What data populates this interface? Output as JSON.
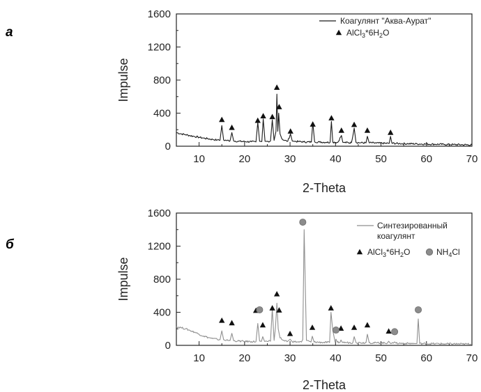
{
  "figure": {
    "panels": [
      {
        "panel_label": "а",
        "legend": {
          "line_label": "Коагулянт \"Аква-Аурат\"",
          "markers": [
            {
              "shape": "triangle",
              "label_parts": [
                "AlCl",
                "3",
                "*6H",
                "2",
                "O"
              ]
            }
          ]
        }
      },
      {
        "panel_label": "б",
        "legend": {
          "line_label_lines": [
            "Синтезированный",
            "коагулянт"
          ],
          "markers": [
            {
              "shape": "triangle",
              "label_parts": [
                "AlCl",
                "3",
                "*6H",
                "2",
                "O"
              ]
            },
            {
              "shape": "circle",
              "label_parts": [
                "NH",
                "4",
                "Cl"
              ]
            }
          ]
        }
      }
    ]
  },
  "chart_data": [
    {
      "type": "line",
      "xlabel": "2-Theta",
      "ylabel": "Impulse",
      "xlim": [
        5,
        70
      ],
      "ylim": [
        0,
        1600
      ],
      "xticks": [
        10,
        20,
        30,
        40,
        50,
        60,
        70
      ],
      "yticks": [
        0,
        400,
        800,
        1200,
        1600
      ],
      "grid": false,
      "legend_position": "top-right",
      "line_color": "#1a1a1a",
      "series": [
        {
          "name": "Коагулянт \"Аква-Аурат\"",
          "x": [
            5,
            6,
            7,
            8,
            9,
            10,
            11,
            12,
            13,
            14,
            14.6,
            15.0,
            15.4,
            16,
            16.8,
            17.2,
            17.6,
            18.5,
            20,
            21.5,
            22.5,
            22.9,
            23.3,
            23.8,
            24.1,
            24.5,
            25,
            25.7,
            26.1,
            26.5,
            26.9,
            27.1,
            27.3,
            27.5,
            27.8,
            28.2,
            28.8,
            29.5,
            30.1,
            30.5,
            31,
            32,
            33,
            34.7,
            35.0,
            35.4,
            36.5,
            38,
            38.8,
            39.1,
            39.4,
            40.5,
            41.3,
            41.6,
            42,
            43.5,
            44.1,
            44.5,
            45.5,
            46.7,
            47.0,
            47.4,
            49,
            50,
            51.8,
            52.1,
            52.4,
            54,
            56,
            58,
            60,
            62,
            64,
            66,
            68,
            70
          ],
          "values": [
            165,
            150,
            140,
            128,
            118,
            108,
            98,
            90,
            82,
            75,
            72,
            250,
            75,
            70,
            66,
            165,
            64,
            60,
            56,
            54,
            52,
            290,
            60,
            56,
            330,
            60,
            58,
            62,
            320,
            70,
            180,
            630,
            180,
            400,
            150,
            90,
            70,
            60,
            150,
            62,
            58,
            56,
            52,
            50,
            290,
            54,
            50,
            48,
            46,
            300,
            50,
            46,
            130,
            48,
            45,
            42,
            220,
            46,
            42,
            40,
            120,
            42,
            38,
            36,
            34,
            120,
            36,
            32,
            30,
            28,
            26,
            24,
            22,
            20,
            18,
            16
          ]
        }
      ],
      "markers": [
        {
          "phase": "AlCl3*6H2O",
          "x": 15.0,
          "y": 320
        },
        {
          "phase": "AlCl3*6H2O",
          "x": 17.2,
          "y": 225
        },
        {
          "phase": "AlCl3*6H2O",
          "x": 22.9,
          "y": 310
        },
        {
          "phase": "AlCl3*6H2O",
          "x": 24.1,
          "y": 365
        },
        {
          "phase": "AlCl3*6H2O",
          "x": 26.1,
          "y": 355
        },
        {
          "phase": "AlCl3*6H2O",
          "x": 27.1,
          "y": 710
        },
        {
          "phase": "AlCl3*6H2O",
          "x": 27.6,
          "y": 475
        },
        {
          "phase": "AlCl3*6H2O",
          "x": 30.1,
          "y": 180
        },
        {
          "phase": "AlCl3*6H2O",
          "x": 35.0,
          "y": 265
        },
        {
          "phase": "AlCl3*6H2O",
          "x": 39.1,
          "y": 340
        },
        {
          "phase": "AlCl3*6H2O",
          "x": 41.3,
          "y": 190
        },
        {
          "phase": "AlCl3*6H2O",
          "x": 44.1,
          "y": 260
        },
        {
          "phase": "AlCl3*6H2O",
          "x": 47.0,
          "y": 190
        },
        {
          "phase": "AlCl3*6H2O",
          "x": 52.1,
          "y": 165
        }
      ]
    },
    {
      "type": "line",
      "xlabel": "2-Theta",
      "ylabel": "Impulse",
      "xlim": [
        5,
        70
      ],
      "ylim": [
        0,
        1600
      ],
      "xticks": [
        10,
        20,
        30,
        40,
        50,
        60,
        70
      ],
      "yticks": [
        0,
        400,
        800,
        1200,
        1600
      ],
      "grid": false,
      "legend_position": "top-right",
      "line_color": "#8f8f8f",
      "series": [
        {
          "name": "Синтезированный коагулянт",
          "x": [
            5,
            6,
            7,
            8,
            9,
            10,
            11,
            12,
            13,
            14,
            14.6,
            15.0,
            15.4,
            16,
            16.8,
            17.2,
            17.6,
            18.5,
            20,
            21.5,
            22.5,
            22.9,
            23.3,
            23.7,
            24.0,
            24.4,
            25,
            25.7,
            26.1,
            26.5,
            26.8,
            27.1,
            27.4,
            27.8,
            28.5,
            29.5,
            30.0,
            30.5,
            31.5,
            32.5,
            32.8,
            33.1,
            33.6,
            34.6,
            34.9,
            35.3,
            37,
            38.7,
            39.0,
            39.4,
            39.9,
            40.1,
            40.4,
            41,
            41.2,
            41.5,
            42.5,
            43.8,
            44.1,
            44.5,
            45.5,
            46.7,
            47.0,
            47.4,
            49,
            51.4,
            51.7,
            52.0,
            52.7,
            53.0,
            53.3,
            55,
            57.5,
            57.9,
            58.2,
            58.5,
            60,
            62,
            64,
            66,
            68,
            70
          ],
          "values": [
            225,
            215,
            200,
            180,
            160,
            135,
            112,
            95,
            82,
            72,
            68,
            175,
            68,
            62,
            58,
            145,
            56,
            52,
            48,
            46,
            44,
            265,
            52,
            48,
            105,
            48,
            46,
            50,
            445,
            60,
            220,
            510,
            200,
            90,
            60,
            50,
            75,
            45,
            42,
            40,
            70,
            1400,
            60,
            40,
            110,
            40,
            36,
            34,
            400,
            180,
            40,
            75,
            38,
            36,
            65,
            36,
            34,
            32,
            105,
            34,
            32,
            32,
            135,
            32,
            30,
            28,
            50,
            28,
            26,
            42,
            26,
            24,
            22,
            22,
            320,
            22,
            20,
            20,
            18,
            18,
            16,
            16
          ]
        }
      ],
      "markers": [
        {
          "phase": "AlCl3*6H2O",
          "x": 15.0,
          "y": 300
        },
        {
          "phase": "AlCl3*6H2O",
          "x": 17.2,
          "y": 270
        },
        {
          "phase": "AlCl3*6H2O",
          "x": 22.5,
          "y": 420
        },
        {
          "phase": "AlCl3*6H2O",
          "x": 24.0,
          "y": 245
        },
        {
          "phase": "AlCl3*6H2O",
          "x": 26.1,
          "y": 450
        },
        {
          "phase": "AlCl3*6H2O",
          "x": 27.1,
          "y": 620
        },
        {
          "phase": "AlCl3*6H2O",
          "x": 27.6,
          "y": 425
        },
        {
          "phase": "AlCl3*6H2O",
          "x": 30.0,
          "y": 140
        },
        {
          "phase": "AlCl3*6H2O",
          "x": 34.9,
          "y": 215
        },
        {
          "phase": "AlCl3*6H2O",
          "x": 39.0,
          "y": 450
        },
        {
          "phase": "AlCl3*6H2O",
          "x": 41.2,
          "y": 205
        },
        {
          "phase": "AlCl3*6H2O",
          "x": 44.1,
          "y": 215
        },
        {
          "phase": "AlCl3*6H2O",
          "x": 47.0,
          "y": 245
        },
        {
          "phase": "AlCl3*6H2O",
          "x": 51.7,
          "y": 170
        },
        {
          "phase": "NH4Cl",
          "x": 23.3,
          "y": 430
        },
        {
          "phase": "NH4Cl",
          "x": 32.8,
          "y": 1490
        },
        {
          "phase": "NH4Cl",
          "x": 40.1,
          "y": 185
        },
        {
          "phase": "NH4Cl",
          "x": 53.0,
          "y": 165
        },
        {
          "phase": "NH4Cl",
          "x": 58.2,
          "y": 430
        }
      ]
    }
  ]
}
